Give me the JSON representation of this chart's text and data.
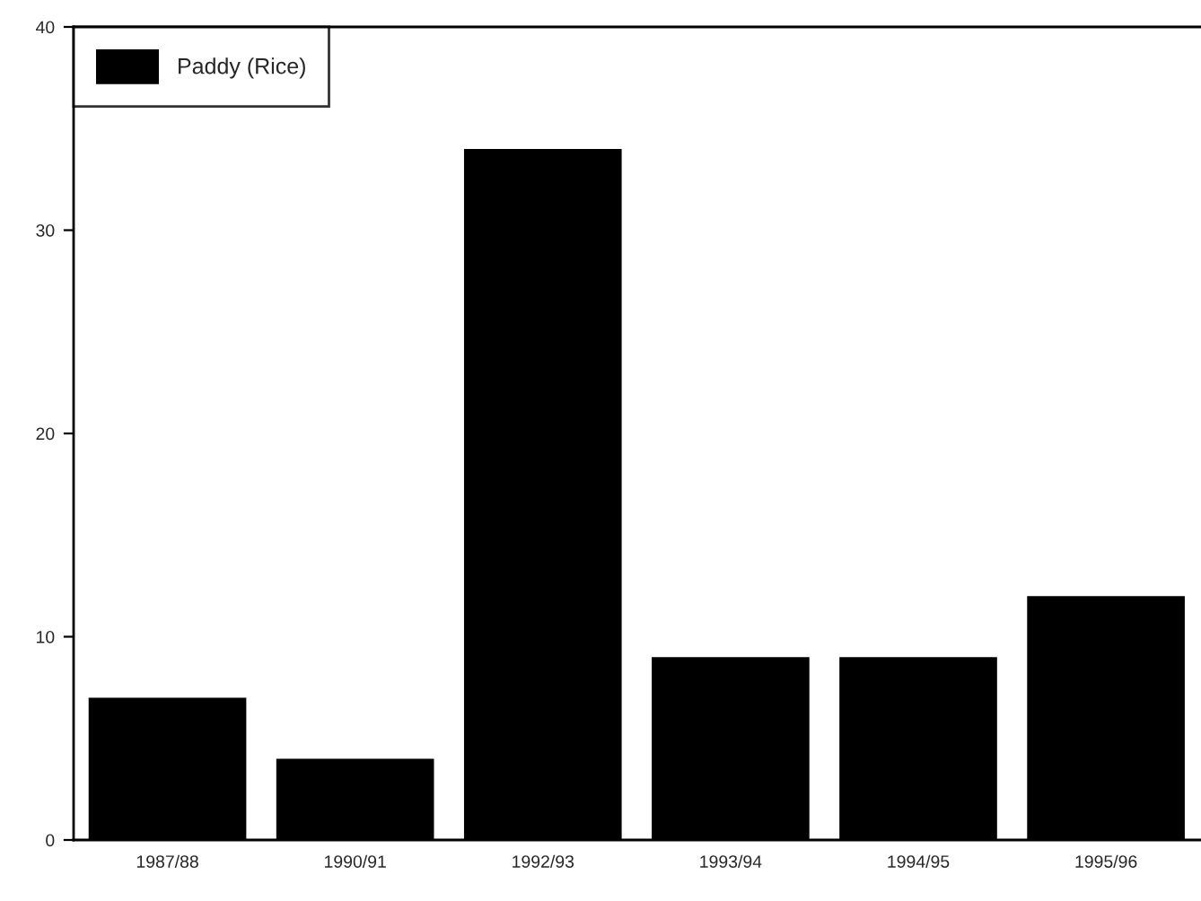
{
  "chart_data": {
    "type": "bar",
    "categories": [
      "1987/88",
      "1990/91",
      "1992/93",
      "1993/94",
      "1994/95",
      "1995/96"
    ],
    "series": [
      {
        "name": "Paddy (Rice)",
        "color": "#000000",
        "values": [
          7,
          4,
          34,
          9,
          9,
          12
        ]
      }
    ],
    "ylim": [
      0,
      40
    ],
    "yticks": [
      0,
      10,
      20,
      30,
      40
    ],
    "grid": false,
    "legend": "top left"
  }
}
